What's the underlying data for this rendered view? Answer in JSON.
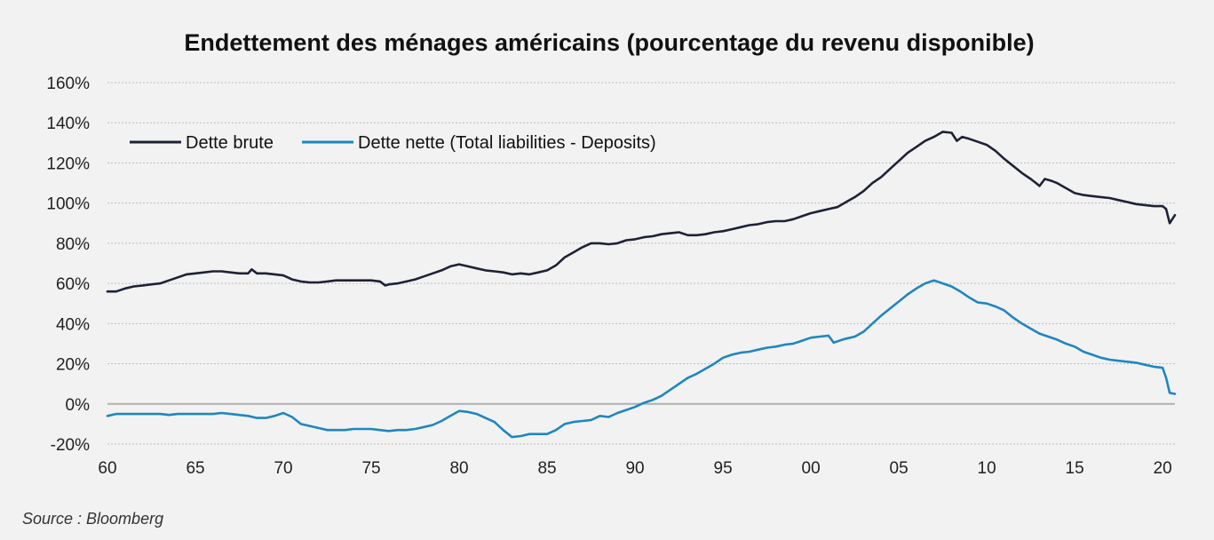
{
  "chart_data": {
    "type": "line",
    "title": "Endettement des ménages américains (pourcentage du revenu disponible)",
    "source": "Source : Bloomberg",
    "xlabel": "",
    "ylabel": "",
    "x_tick_labels": [
      "60",
      "65",
      "70",
      "75",
      "80",
      "85",
      "90",
      "95",
      "00",
      "05",
      "10",
      "15",
      "20"
    ],
    "y_tick_labels": [
      "-20%",
      "0%",
      "20%",
      "40%",
      "60%",
      "80%",
      "100%",
      "120%",
      "140%",
      "160%"
    ],
    "xlim": [
      1960,
      2020.7
    ],
    "ylim": [
      -20,
      160
    ],
    "grid": "horizontal dotted",
    "legend_position": "top-left",
    "series": [
      {
        "name": "Dette brute",
        "color": "#1f2235",
        "points": [
          [
            1960.0,
            56
          ],
          [
            1960.5,
            56
          ],
          [
            1961.0,
            57.5
          ],
          [
            1961.5,
            58.5
          ],
          [
            1962.0,
            59
          ],
          [
            1962.5,
            59.5
          ],
          [
            1963.0,
            60
          ],
          [
            1963.5,
            61.5
          ],
          [
            1964.0,
            63
          ],
          [
            1964.5,
            64.5
          ],
          [
            1965.0,
            65
          ],
          [
            1965.5,
            65.5
          ],
          [
            1966.0,
            66
          ],
          [
            1966.5,
            66
          ],
          [
            1967.0,
            65.5
          ],
          [
            1967.5,
            65
          ],
          [
            1968.0,
            65
          ],
          [
            1968.2,
            67
          ],
          [
            1968.5,
            65
          ],
          [
            1969.0,
            65
          ],
          [
            1969.5,
            64.5
          ],
          [
            1970.0,
            64
          ],
          [
            1970.5,
            62
          ],
          [
            1971.0,
            61
          ],
          [
            1971.5,
            60.5
          ],
          [
            1972.0,
            60.5
          ],
          [
            1972.5,
            61
          ],
          [
            1973.0,
            61.5
          ],
          [
            1973.5,
            61.5
          ],
          [
            1974.0,
            61.5
          ],
          [
            1974.5,
            61.5
          ],
          [
            1975.0,
            61.5
          ],
          [
            1975.5,
            61
          ],
          [
            1975.8,
            59
          ],
          [
            1976.0,
            59.5
          ],
          [
            1976.5,
            60
          ],
          [
            1977.0,
            61
          ],
          [
            1977.5,
            62
          ],
          [
            1978.0,
            63.5
          ],
          [
            1978.5,
            65
          ],
          [
            1979.0,
            66.5
          ],
          [
            1979.5,
            68.5
          ],
          [
            1980.0,
            69.5
          ],
          [
            1980.5,
            68.5
          ],
          [
            1981.0,
            67.5
          ],
          [
            1981.5,
            66.5
          ],
          [
            1982.0,
            66
          ],
          [
            1982.5,
            65.5
          ],
          [
            1983.0,
            64.5
          ],
          [
            1983.5,
            65
          ],
          [
            1984.0,
            64.5
          ],
          [
            1984.5,
            65.5
          ],
          [
            1985.0,
            66.5
          ],
          [
            1985.5,
            69
          ],
          [
            1986.0,
            73
          ],
          [
            1986.5,
            75.5
          ],
          [
            1987.0,
            78
          ],
          [
            1987.5,
            80
          ],
          [
            1988.0,
            80
          ],
          [
            1988.5,
            79.5
          ],
          [
            1989.0,
            80
          ],
          [
            1989.5,
            81.5
          ],
          [
            1990.0,
            82
          ],
          [
            1990.5,
            83
          ],
          [
            1991.0,
            83.5
          ],
          [
            1991.5,
            84.5
          ],
          [
            1992.0,
            85
          ],
          [
            1992.5,
            85.5
          ],
          [
            1993.0,
            84
          ],
          [
            1993.5,
            84
          ],
          [
            1994.0,
            84.5
          ],
          [
            1994.5,
            85.5
          ],
          [
            1995.0,
            86
          ],
          [
            1995.5,
            87
          ],
          [
            1996.0,
            88
          ],
          [
            1996.5,
            89
          ],
          [
            1997.0,
            89.5
          ],
          [
            1997.5,
            90.5
          ],
          [
            1998.0,
            91
          ],
          [
            1998.5,
            91
          ],
          [
            1999.0,
            92
          ],
          [
            1999.5,
            93.5
          ],
          [
            2000.0,
            95
          ],
          [
            2000.5,
            96
          ],
          [
            2001.0,
            97
          ],
          [
            2001.5,
            98
          ],
          [
            2002.0,
            100.5
          ],
          [
            2002.5,
            103
          ],
          [
            2003.0,
            106
          ],
          [
            2003.5,
            110
          ],
          [
            2004.0,
            113
          ],
          [
            2004.5,
            117
          ],
          [
            2005.0,
            121
          ],
          [
            2005.5,
            125
          ],
          [
            2006.0,
            128
          ],
          [
            2006.5,
            131
          ],
          [
            2007.0,
            133
          ],
          [
            2007.5,
            135.5
          ],
          [
            2008.0,
            135
          ],
          [
            2008.3,
            131
          ],
          [
            2008.6,
            133
          ],
          [
            2009.0,
            132
          ],
          [
            2009.5,
            130.5
          ],
          [
            2010.0,
            129
          ],
          [
            2010.5,
            126
          ],
          [
            2011.0,
            122
          ],
          [
            2011.5,
            118.5
          ],
          [
            2012.0,
            115
          ],
          [
            2012.5,
            112
          ],
          [
            2012.8,
            110
          ],
          [
            2013.0,
            108.5
          ],
          [
            2013.3,
            112
          ],
          [
            2013.7,
            111
          ],
          [
            2014.0,
            110
          ],
          [
            2014.5,
            107.5
          ],
          [
            2015.0,
            105
          ],
          [
            2015.5,
            104
          ],
          [
            2016.0,
            103.5
          ],
          [
            2016.5,
            103
          ],
          [
            2017.0,
            102.5
          ],
          [
            2017.5,
            101.5
          ],
          [
            2018.0,
            100.5
          ],
          [
            2018.5,
            99.5
          ],
          [
            2019.0,
            99
          ],
          [
            2019.5,
            98.5
          ],
          [
            2020.0,
            98.5
          ],
          [
            2020.2,
            97
          ],
          [
            2020.4,
            90
          ],
          [
            2020.7,
            94
          ]
        ]
      },
      {
        "name": "Dette nette (Total liabilities - Deposits)",
        "color": "#1f86c0",
        "points": [
          [
            1960.0,
            -6
          ],
          [
            1960.5,
            -5
          ],
          [
            1961.0,
            -5
          ],
          [
            1961.5,
            -5
          ],
          [
            1962.0,
            -5
          ],
          [
            1962.5,
            -5
          ],
          [
            1963.0,
            -5
          ],
          [
            1963.5,
            -5.5
          ],
          [
            1964.0,
            -5
          ],
          [
            1964.5,
            -5
          ],
          [
            1965.0,
            -5
          ],
          [
            1965.5,
            -5
          ],
          [
            1966.0,
            -5
          ],
          [
            1966.5,
            -4.5
          ],
          [
            1967.0,
            -5
          ],
          [
            1967.5,
            -5.5
          ],
          [
            1968.0,
            -6
          ],
          [
            1968.5,
            -7
          ],
          [
            1969.0,
            -7
          ],
          [
            1969.5,
            -6
          ],
          [
            1970.0,
            -4.5
          ],
          [
            1970.5,
            -6.5
          ],
          [
            1971.0,
            -10
          ],
          [
            1971.5,
            -11
          ],
          [
            1972.0,
            -12
          ],
          [
            1972.5,
            -13
          ],
          [
            1973.0,
            -13
          ],
          [
            1973.5,
            -13
          ],
          [
            1974.0,
            -12.5
          ],
          [
            1974.5,
            -12.5
          ],
          [
            1975.0,
            -12.5
          ],
          [
            1975.5,
            -13
          ],
          [
            1976.0,
            -13.5
          ],
          [
            1976.5,
            -13
          ],
          [
            1977.0,
            -13
          ],
          [
            1977.5,
            -12.5
          ],
          [
            1978.0,
            -11.5
          ],
          [
            1978.5,
            -10.5
          ],
          [
            1979.0,
            -8.5
          ],
          [
            1979.5,
            -6
          ],
          [
            1980.0,
            -3.5
          ],
          [
            1980.5,
            -4
          ],
          [
            1981.0,
            -5
          ],
          [
            1981.5,
            -7
          ],
          [
            1982.0,
            -9
          ],
          [
            1982.5,
            -13
          ],
          [
            1983.0,
            -16.5
          ],
          [
            1983.5,
            -16
          ],
          [
            1984.0,
            -15
          ],
          [
            1984.5,
            -15
          ],
          [
            1985.0,
            -15
          ],
          [
            1985.5,
            -13
          ],
          [
            1986.0,
            -10
          ],
          [
            1986.5,
            -9
          ],
          [
            1987.0,
            -8.5
          ],
          [
            1987.5,
            -8
          ],
          [
            1988.0,
            -6
          ],
          [
            1988.5,
            -6.5
          ],
          [
            1989.0,
            -4.5
          ],
          [
            1989.5,
            -3
          ],
          [
            1990.0,
            -1.5
          ],
          [
            1990.5,
            0.5
          ],
          [
            1991.0,
            2
          ],
          [
            1991.5,
            4
          ],
          [
            1992.0,
            7
          ],
          [
            1992.5,
            10
          ],
          [
            1993.0,
            13
          ],
          [
            1993.5,
            15
          ],
          [
            1994.0,
            17.5
          ],
          [
            1994.5,
            20
          ],
          [
            1995.0,
            23
          ],
          [
            1995.5,
            24.5
          ],
          [
            1996.0,
            25.5
          ],
          [
            1996.5,
            26
          ],
          [
            1997.0,
            27
          ],
          [
            1997.5,
            28
          ],
          [
            1998.0,
            28.5
          ],
          [
            1998.5,
            29.5
          ],
          [
            1999.0,
            30
          ],
          [
            1999.5,
            31.5
          ],
          [
            2000.0,
            33
          ],
          [
            2000.5,
            33.5
          ],
          [
            2001.0,
            34
          ],
          [
            2001.3,
            30.5
          ],
          [
            2001.8,
            32
          ],
          [
            2002.0,
            32.5
          ],
          [
            2002.5,
            33.5
          ],
          [
            2003.0,
            36
          ],
          [
            2003.5,
            40
          ],
          [
            2004.0,
            44
          ],
          [
            2004.5,
            47.5
          ],
          [
            2005.0,
            51
          ],
          [
            2005.5,
            54.5
          ],
          [
            2006.0,
            57.5
          ],
          [
            2006.5,
            60
          ],
          [
            2007.0,
            61.5
          ],
          [
            2007.5,
            60
          ],
          [
            2008.0,
            58.5
          ],
          [
            2008.5,
            56
          ],
          [
            2009.0,
            53
          ],
          [
            2009.5,
            50.5
          ],
          [
            2010.0,
            50
          ],
          [
            2010.5,
            48.5
          ],
          [
            2011.0,
            46.5
          ],
          [
            2011.5,
            43
          ],
          [
            2012.0,
            40
          ],
          [
            2012.5,
            37.5
          ],
          [
            2013.0,
            35
          ],
          [
            2013.5,
            33.5
          ],
          [
            2014.0,
            32
          ],
          [
            2014.5,
            30
          ],
          [
            2015.0,
            28.5
          ],
          [
            2015.5,
            26
          ],
          [
            2016.0,
            24.5
          ],
          [
            2016.5,
            23
          ],
          [
            2017.0,
            22
          ],
          [
            2017.5,
            21.5
          ],
          [
            2018.0,
            21
          ],
          [
            2018.5,
            20.5
          ],
          [
            2019.0,
            19.5
          ],
          [
            2019.5,
            18.5
          ],
          [
            2020.0,
            18
          ],
          [
            2020.2,
            13
          ],
          [
            2020.4,
            5.5
          ],
          [
            2020.7,
            5
          ]
        ]
      }
    ]
  }
}
